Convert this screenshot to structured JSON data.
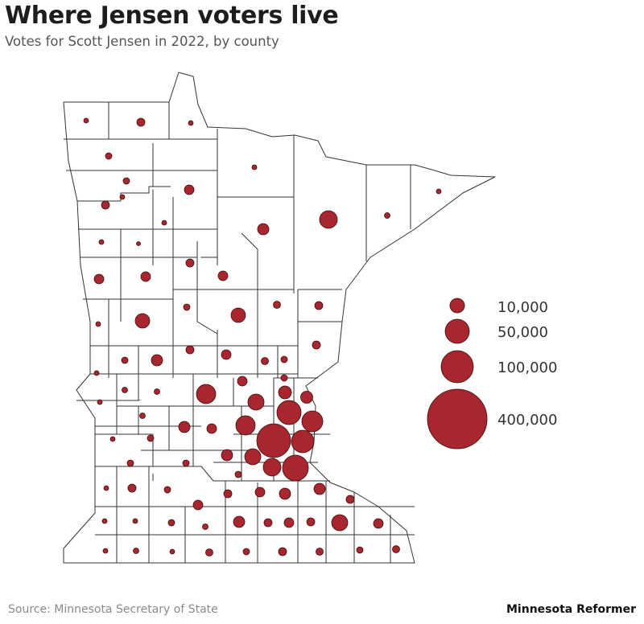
{
  "header": {
    "title": "Where Jensen voters live",
    "subtitle": "Votes for Scott Jensen in 2022, by county"
  },
  "footer": {
    "source": "Source: Minnesota Secretary of State",
    "brand": "Minnesota Reformer"
  },
  "colors": {
    "bubble_fill": "#a8262d",
    "bubble_stroke": "#3a0d10",
    "county_stroke": "#333333",
    "land": "#ffffff"
  },
  "legend": {
    "items": [
      {
        "label": "10,000",
        "value": 10000
      },
      {
        "label": "50,000",
        "value": 50000
      },
      {
        "label": "100,000",
        "value": 100000
      },
      {
        "label": "400,000",
        "value": 400000
      }
    ]
  }
}
